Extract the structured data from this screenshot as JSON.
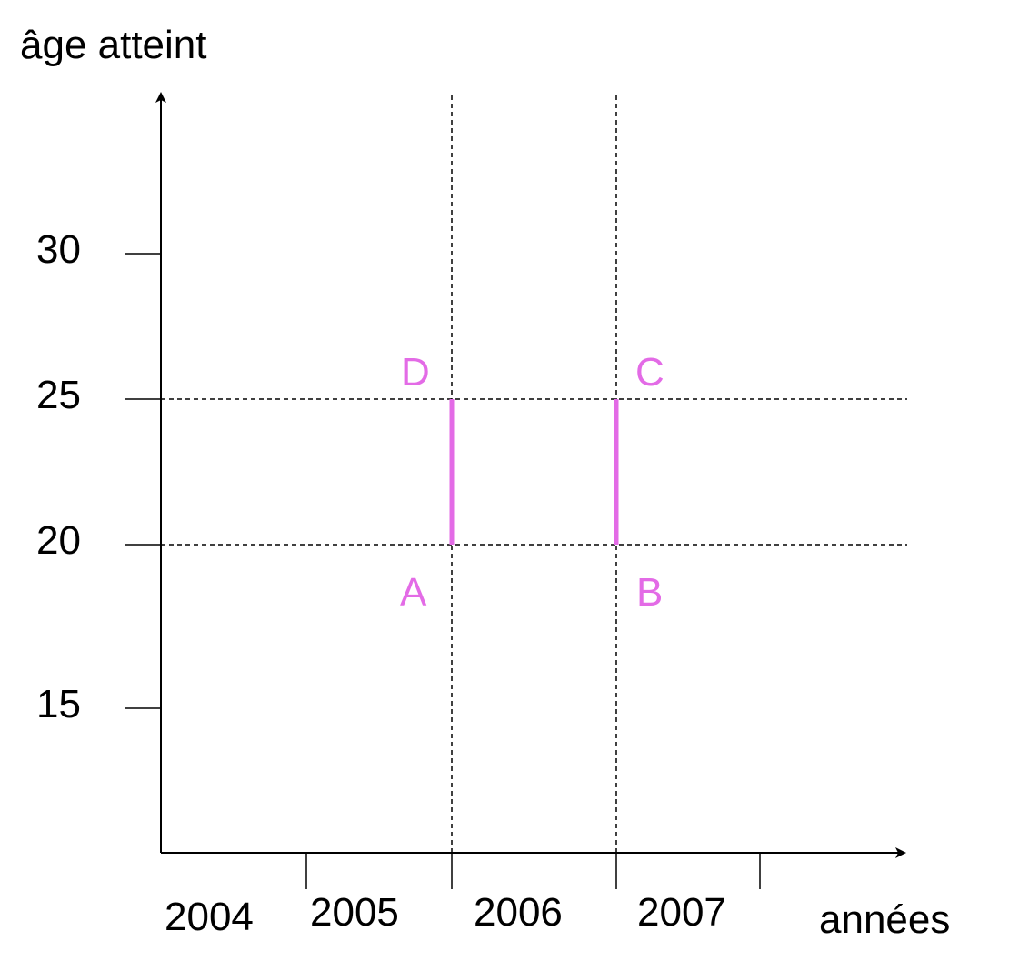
{
  "diagram": {
    "y_axis_label": "âge atteint",
    "x_axis_label": "années",
    "y_ticks": [
      "30",
      "25",
      "20",
      "15"
    ],
    "x_year_labels": [
      "2004",
      "2005",
      "2006",
      "2007"
    ],
    "points": [
      "A",
      "B",
      "C",
      "D"
    ],
    "accent_color": "#e36be6",
    "axis_color": "#000000"
  }
}
